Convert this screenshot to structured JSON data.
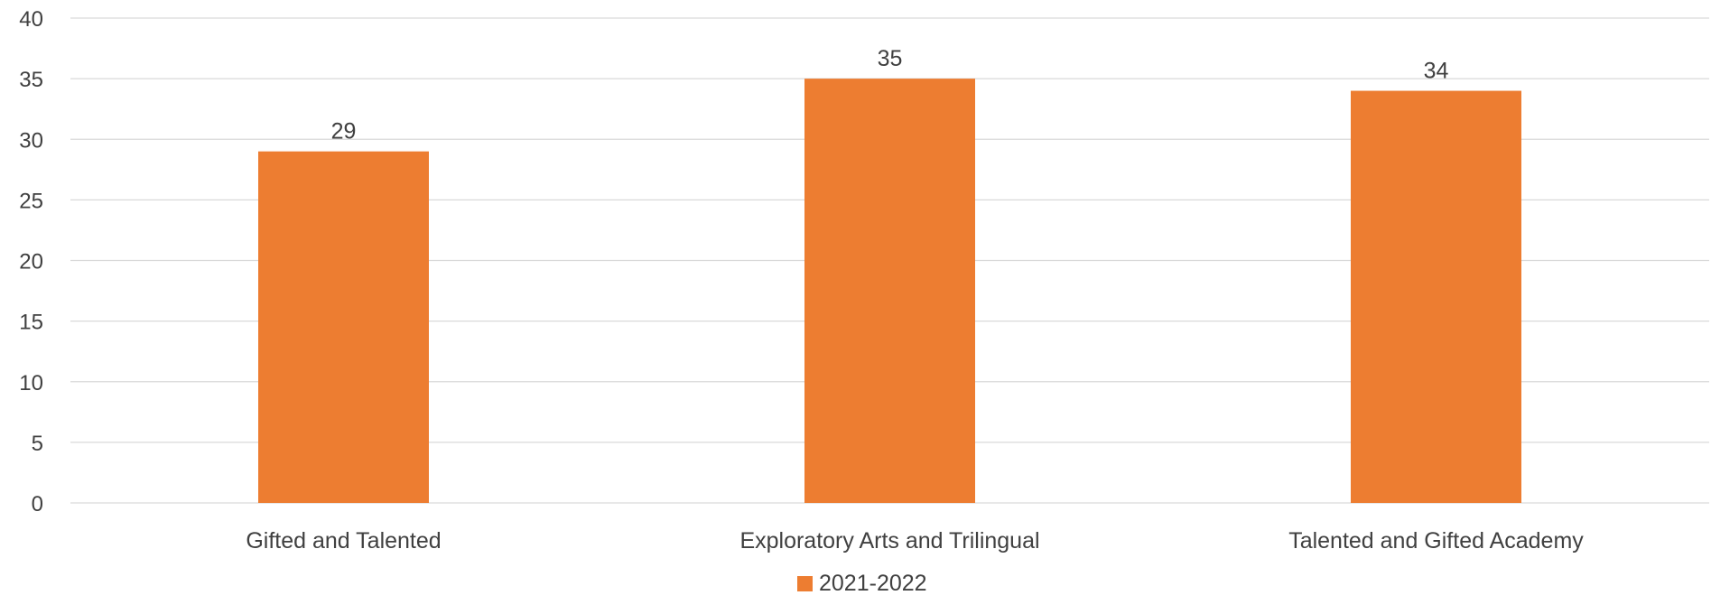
{
  "chart_data": {
    "type": "bar",
    "title": "",
    "xlabel": "",
    "ylabel": "",
    "categories": [
      "Gifted and Talented",
      "Exploratory Arts and Trilingual",
      "Talented and Gifted Academy"
    ],
    "series": [
      {
        "name": "2021-2022",
        "values": [
          29,
          35,
          34
        ],
        "color": "#ED7D31"
      }
    ],
    "ylim": [
      0,
      40
    ],
    "yticks": [
      0,
      5,
      10,
      15,
      20,
      25,
      30,
      35,
      40
    ],
    "data_labels": true,
    "grid": true,
    "legend": {
      "position": "bottom",
      "entries": [
        "2021-2022"
      ]
    }
  }
}
